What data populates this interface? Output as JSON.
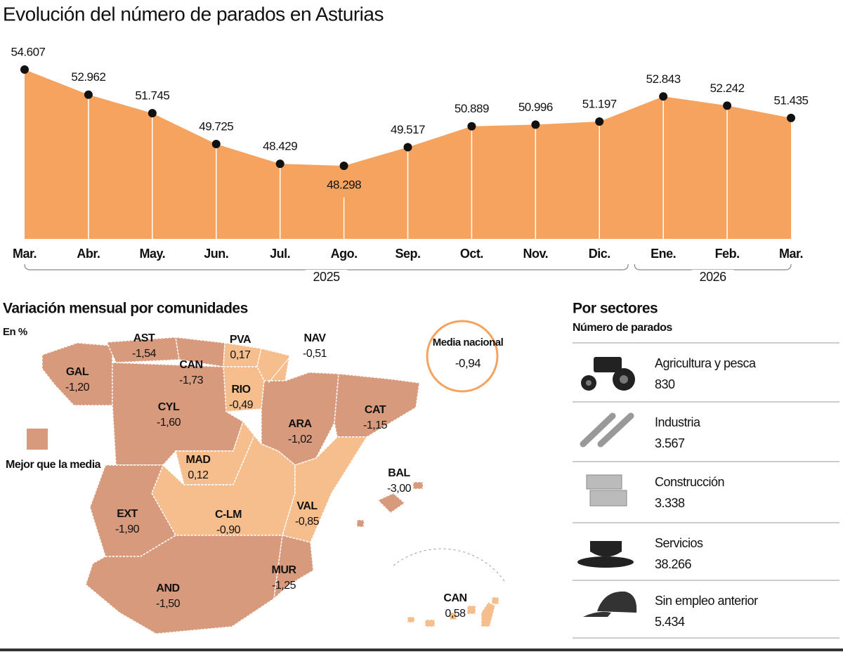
{
  "chart_data": {
    "type": "area",
    "title": "Evolución del número de parados en Asturias",
    "categories": [
      "Mar.",
      "Abr.",
      "May.",
      "Jun.",
      "Jul.",
      "Ago.",
      "Sep.",
      "Oct.",
      "Nov.",
      "Dic.",
      "Ene.",
      "Feb.",
      "Mar."
    ],
    "values": [
      54607,
      52962,
      51745,
      49725,
      48429,
      48298,
      49517,
      50889,
      50996,
      51197,
      52843,
      52242,
      51435
    ],
    "value_labels": [
      "54.607",
      "52.962",
      "51.745",
      "49.725",
      "48.429",
      "48.298",
      "49.517",
      "50.889",
      "50.996",
      "51.197",
      "52.843",
      "52.242",
      "51.435"
    ],
    "x_groups": [
      {
        "label": "2025",
        "span": 10
      },
      {
        "label": "2026",
        "span": 3
      }
    ],
    "color": "#f5a35f",
    "point_color": "#111111"
  },
  "map": {
    "title": "Variación mensual por comunidades",
    "unit": "En %",
    "legend": "Mejor que la media",
    "media": {
      "name": "Media nacional",
      "value": -0.94,
      "value_label": "-0,94"
    },
    "colors": {
      "better": "#d89a7d",
      "other": "#f6bd8d"
    },
    "regions": [
      {
        "name": "GAL",
        "value": -1.2,
        "value_label": "-1,20"
      },
      {
        "name": "AST",
        "value": -1.54,
        "value_label": "-1,54"
      },
      {
        "name": "CAN",
        "value": -1.73,
        "value_label": "-1,73"
      },
      {
        "name": "PVA",
        "value": 0.17,
        "value_label": "0,17"
      },
      {
        "name": "NAV",
        "value": -0.51,
        "value_label": "-0,51"
      },
      {
        "name": "RIO",
        "value": -0.49,
        "value_label": "-0,49"
      },
      {
        "name": "CYL",
        "value": -1.6,
        "value_label": "-1,60"
      },
      {
        "name": "ARA",
        "value": -1.02,
        "value_label": "-1,02"
      },
      {
        "name": "CAT",
        "value": -1.15,
        "value_label": "-1,15"
      },
      {
        "name": "MAD",
        "value": 0.12,
        "value_label": "0,12"
      },
      {
        "name": "C-LM",
        "value": -0.9,
        "value_label": "-0,90"
      },
      {
        "name": "EXT",
        "value": -1.9,
        "value_label": "-1,90"
      },
      {
        "name": "VAL",
        "value": -0.85,
        "value_label": "-0,85"
      },
      {
        "name": "AND",
        "value": -1.5,
        "value_label": "-1,50"
      },
      {
        "name": "MUR",
        "value": -1.25,
        "value_label": "-1,25"
      },
      {
        "name": "BAL",
        "value": -3.0,
        "value_label": "-3,00"
      },
      {
        "name": "CAN",
        "value": 0.58,
        "value_label": "0,58"
      }
    ]
  },
  "sectors": {
    "title": "Por sectores",
    "subtitle": "Número de parados",
    "items": [
      {
        "name": "Agricultura y pesca",
        "value": 830
      },
      {
        "name": "Industria",
        "value": 3567,
        "value_label": "3.567"
      },
      {
        "name": "Construcción",
        "value": 3338,
        "value_label": "3.338"
      },
      {
        "name": "Servicios",
        "value": 38266,
        "value_label": "38.266"
      },
      {
        "name": "Sin empleo anterior",
        "value": 5434,
        "value_label": "5.434"
      }
    ]
  }
}
